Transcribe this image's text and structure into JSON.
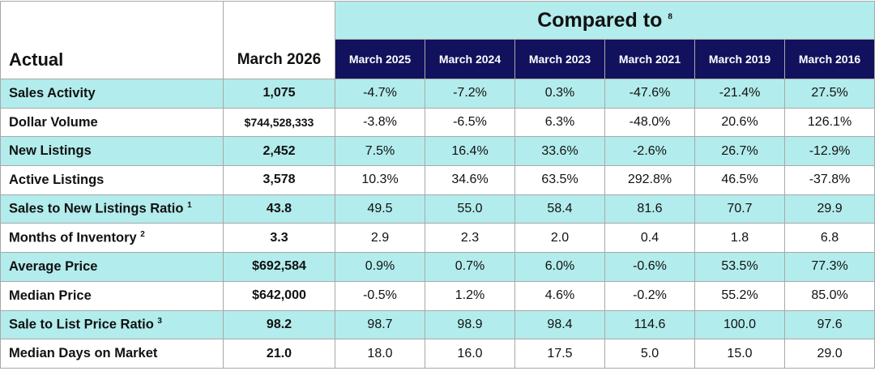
{
  "header": {
    "actual": "Actual",
    "current": "March 2026",
    "compared": "Compared to",
    "compared_note": "8",
    "periods": [
      "March 2025",
      "March 2024",
      "March 2023",
      "March 2021",
      "March 2019",
      "March 2016"
    ]
  },
  "rows": [
    {
      "label": "Sales Activity",
      "current": "1,075",
      "changes": [
        "-4.7%",
        "-7.2%",
        "0.3%",
        "-47.6%",
        "-21.4%",
        "27.5%"
      ]
    },
    {
      "label": "Dollar Volume",
      "current": "$744,528,333",
      "changes": [
        "-3.8%",
        "-6.5%",
        "6.3%",
        "-48.0%",
        "20.6%",
        "126.1%"
      ]
    },
    {
      "label": "New Listings",
      "current": "2,452",
      "changes": [
        "7.5%",
        "16.4%",
        "33.6%",
        "-2.6%",
        "26.7%",
        "-12.9%"
      ]
    },
    {
      "label": "Active Listings",
      "current": "3,578",
      "changes": [
        "10.3%",
        "34.6%",
        "63.5%",
        "292.8%",
        "46.5%",
        "-37.8%"
      ]
    },
    {
      "label": "Sales to New Listings Ratio",
      "note": "1",
      "current": "43.8",
      "changes": [
        "49.5",
        "55.0",
        "58.4",
        "81.6",
        "70.7",
        "29.9"
      ]
    },
    {
      "label": "Months of Inventory",
      "note": "2",
      "current": "3.3",
      "changes": [
        "2.9",
        "2.3",
        "2.0",
        "0.4",
        "1.8",
        "6.8"
      ]
    },
    {
      "label": "Average Price",
      "current": "$692,584",
      "changes": [
        "0.9%",
        "0.7%",
        "6.0%",
        "-0.6%",
        "53.5%",
        "77.3%"
      ]
    },
    {
      "label": "Median Price",
      "current": "$642,000",
      "changes": [
        "-0.5%",
        "1.2%",
        "4.6%",
        "-0.2%",
        "55.2%",
        "85.0%"
      ]
    },
    {
      "label": "Sale to List Price Ratio",
      "note": "3",
      "current": "98.2",
      "changes": [
        "98.7",
        "98.9",
        "98.4",
        "114.6",
        "100.0",
        "97.6"
      ]
    },
    {
      "label": "Median Days on Market",
      "current": "21.0",
      "changes": [
        "18.0",
        "16.0",
        "17.5",
        "5.0",
        "15.0",
        "29.0"
      ]
    }
  ]
}
